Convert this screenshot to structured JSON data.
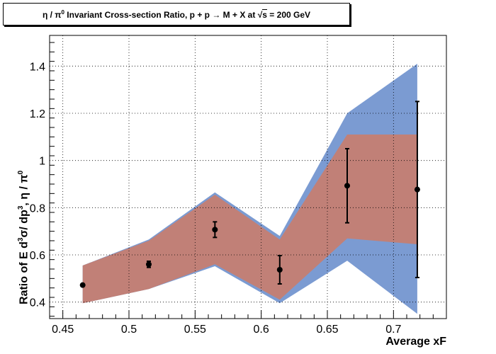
{
  "title": {
    "prefix": "η / π",
    "sup": "0",
    "text": " Invariant Cross-section Ratio, p + p → M + X at ",
    "sqrt_symbol": "√",
    "sqrt_arg": "s",
    "suffix": " = 200 GeV"
  },
  "axes": {
    "xlabel": "Average xF",
    "ylabel_parts": [
      "Ratio of E d",
      "3",
      "σ/ dp",
      "3",
      ",  η / π",
      "0"
    ]
  },
  "chart_data": {
    "type": "line",
    "x_range": [
      0.44,
      0.74
    ],
    "y_range": [
      0.33,
      1.53
    ],
    "x_ticks": [
      0.45,
      0.5,
      0.55,
      0.6,
      0.65,
      0.7
    ],
    "x_tick_labels": [
      "0.45",
      "0.5",
      "0.55",
      "0.6",
      "0.65",
      "0.7"
    ],
    "y_ticks": [
      0.4,
      0.6,
      0.8,
      1.0,
      1.2,
      1.4
    ],
    "y_tick_labels": [
      "0.4",
      "0.6",
      "0.8",
      "1",
      "1.2",
      "1.4"
    ],
    "grid": true,
    "points": [
      {
        "x": 0.465,
        "y": 0.472,
        "err": 0.0
      },
      {
        "x": 0.515,
        "y": 0.56,
        "err": 0.013
      },
      {
        "x": 0.565,
        "y": 0.707,
        "err": 0.033
      },
      {
        "x": 0.614,
        "y": 0.537,
        "err": 0.06
      },
      {
        "x": 0.665,
        "y": 0.893,
        "err": 0.157
      },
      {
        "x": 0.718,
        "y": 0.877,
        "err": 0.373
      }
    ],
    "band_outer": {
      "x": [
        0.465,
        0.515,
        0.565,
        0.614,
        0.665,
        0.718
      ],
      "upper": [
        0.555,
        0.665,
        0.865,
        0.68,
        1.2,
        1.41
      ],
      "lower": [
        0.395,
        0.455,
        0.552,
        0.395,
        0.575,
        0.35
      ],
      "color": "#7b9bd2"
    },
    "band_inner": {
      "x": [
        0.465,
        0.515,
        0.565,
        0.614,
        0.665,
        0.718
      ],
      "upper": [
        0.555,
        0.66,
        0.855,
        0.665,
        1.11,
        1.11
      ],
      "lower": [
        0.395,
        0.455,
        0.56,
        0.41,
        0.67,
        0.645
      ],
      "color": "#c18077"
    }
  }
}
